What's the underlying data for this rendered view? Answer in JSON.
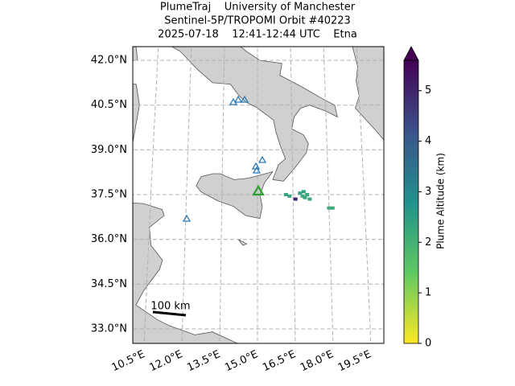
{
  "title": [
    "PlumeTraj    University of Manchester",
    "Sentinel-5P/TROPOMI Orbit #40223",
    "2025-07-18    12:41-12:44 UTC    Etna"
  ],
  "map": {
    "lat_ticks": [
      {
        "value": 42,
        "label": "42.0°N"
      },
      {
        "value": 40.5,
        "label": "40.5°N"
      },
      {
        "value": 39,
        "label": "39.0°N"
      },
      {
        "value": 37.5,
        "label": "37.5°N"
      },
      {
        "value": 36,
        "label": "36.0°N"
      },
      {
        "value": 34.5,
        "label": "34.5°N"
      },
      {
        "value": 33,
        "label": "33.0°N"
      }
    ],
    "lon_ticks": [
      {
        "value": 10.5,
        "label": "10.5°E"
      },
      {
        "value": 12,
        "label": "12.0°E"
      },
      {
        "value": 13.5,
        "label": "13.5°E"
      },
      {
        "value": 15,
        "label": "15.0°E"
      },
      {
        "value": 16.5,
        "label": "16.5°E"
      },
      {
        "value": 18,
        "label": "18.0°E"
      },
      {
        "value": 19.5,
        "label": "19.5°E"
      }
    ],
    "scale_bar": "100 km",
    "plume": [
      {
        "lon": 16.2,
        "lat": 37.5,
        "altitude": 2.3
      },
      {
        "lon": 16.35,
        "lat": 37.45,
        "altitude": 2.3
      },
      {
        "lon": 16.6,
        "lat": 37.35,
        "altitude": 5.0
      },
      {
        "lon": 16.8,
        "lat": 37.55,
        "altitude": 2.4
      },
      {
        "lon": 16.9,
        "lat": 37.45,
        "altitude": 2.2
      },
      {
        "lon": 17.0,
        "lat": 37.4,
        "altitude": 2.3
      },
      {
        "lon": 17.1,
        "lat": 37.5,
        "altitude": 2.3
      },
      {
        "lon": 16.95,
        "lat": 37.6,
        "altitude": 2.4
      },
      {
        "lon": 17.2,
        "lat": 37.35,
        "altitude": 2.2
      },
      {
        "lon": 18.0,
        "lat": 37.05,
        "altitude": 2.1
      },
      {
        "lon": 18.15,
        "lat": 37.05,
        "altitude": 2.2
      }
    ]
  },
  "colorbar": {
    "label": "Plume Altitude (km)",
    "range": [
      0,
      5.6
    ],
    "ticks": [
      0,
      1,
      2,
      3,
      4,
      5
    ]
  }
}
